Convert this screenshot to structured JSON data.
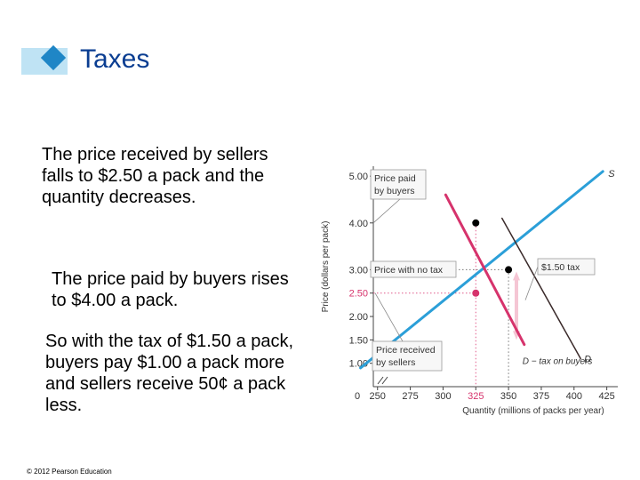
{
  "slide": {
    "title": "Taxes",
    "paragraphs": [
      "The price received by sellers falls to $2.50 a pack and the quantity decreases.",
      "The price paid by buyers rises to $4.00 a pack.",
      "So with the tax of $1.50 a pack, buyers pay $1.00 a pack more and sellers receive 50¢ a pack less."
    ],
    "copyright": "© 2012 Pearson Education"
  },
  "colors": {
    "title": "#0a3d91",
    "accent": "#1f86c6",
    "accent_light": "#bfe3f4",
    "supply": "#2b9fd8",
    "demand": "#d6336c",
    "highlight": "#e05a8a",
    "arrow": "#f5c6d4"
  },
  "chart_data": {
    "type": "line",
    "xlabel": "Quantity (millions of packs per year)",
    "ylabel": "Price (dollars per pack)",
    "x_origin_label": "0",
    "x_ticks": [
      250,
      275,
      300,
      325,
      350,
      375,
      400,
      425
    ],
    "y_ticks": [
      1.0,
      1.5,
      2.0,
      2.5,
      3.0,
      4.0,
      5.0
    ],
    "y_tick_labels": [
      "1.00",
      "1.50",
      "2.00",
      "2.50",
      "3.00",
      "4.00",
      "5.00"
    ],
    "highlight_x": 325,
    "highlight_y": 2.5,
    "xlim": [
      240,
      430
    ],
    "ylim": [
      0.5,
      5.25
    ],
    "series": [
      {
        "name": "S",
        "color": "#2b9fd8",
        "points": [
          [
            237,
            0.9
          ],
          [
            422,
            5.1
          ]
        ]
      },
      {
        "name": "D",
        "color": "#3a2a2a",
        "points": [
          [
            345,
            4.1
          ],
          [
            405,
            1.1
          ]
        ]
      },
      {
        "name": "D − tax on buyers",
        "color": "#d6336c",
        "points": [
          [
            302,
            4.6
          ],
          [
            362,
            1.4
          ]
        ]
      }
    ],
    "points": [
      {
        "x": 350,
        "y": 3.0,
        "color": "#000000"
      },
      {
        "x": 325,
        "y": 4.0,
        "color": "#000000"
      },
      {
        "x": 325,
        "y": 2.5,
        "color": "#d6336c"
      }
    ],
    "annotations": [
      {
        "text": "Price paid by buyers",
        "lines": [
          "Price paid",
          "by buyers"
        ]
      },
      {
        "text": "Price with no tax",
        "lines": [
          "Price with no tax"
        ]
      },
      {
        "text": "$1.50 tax",
        "lines": [
          "$1.50 tax"
        ]
      },
      {
        "text": "Price received by sellers",
        "lines": [
          "Price received",
          "by sellers"
        ]
      }
    ]
  }
}
